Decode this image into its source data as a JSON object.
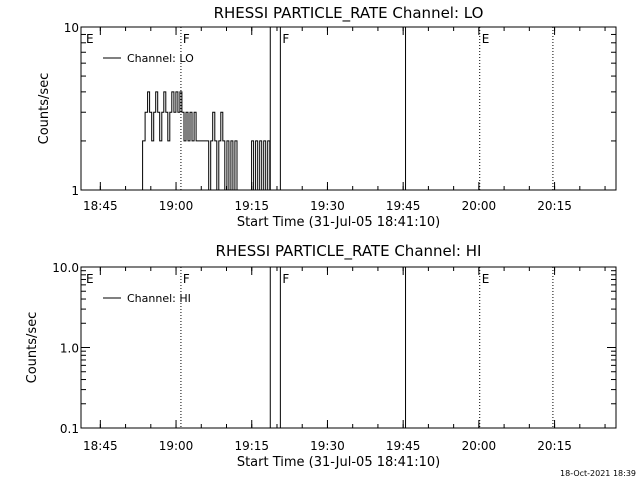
{
  "footer": {
    "timestamp": "18-Oct-2021 18:39"
  },
  "chart_data": [
    {
      "type": "line",
      "title": "RHESSI PARTICLE_RATE Channel: LO",
      "xlabel": "Start Time (31-Jul-05 18:41:10)",
      "ylabel": "Counts/sec",
      "x_units": "minutes after 18:41:10",
      "xlim": [
        0,
        106
      ],
      "ylim": [
        1,
        10
      ],
      "y_scale": "log",
      "x_ticks": [
        {
          "value": 3.83,
          "label": "18:45"
        },
        {
          "value": 18.83,
          "label": "19:00"
        },
        {
          "value": 33.83,
          "label": "19:15"
        },
        {
          "value": 48.83,
          "label": "19:30"
        },
        {
          "value": 63.83,
          "label": "19:45"
        },
        {
          "value": 78.83,
          "label": "20:00"
        },
        {
          "value": 93.83,
          "label": "20:15"
        }
      ],
      "y_ticks": [
        {
          "value": 1,
          "label": "1"
        },
        {
          "value": 10,
          "label": "10"
        }
      ],
      "legend": {
        "position": "top-left",
        "entries": [
          "Channel: LO"
        ]
      },
      "series": [
        {
          "name": "Channel: LO",
          "x": [
            12.2,
            12.2,
            12.7,
            12.7,
            13.2,
            13.2,
            13.6,
            13.6,
            14.0,
            14.0,
            14.4,
            14.4,
            14.8,
            14.8,
            15.2,
            15.2,
            15.6,
            15.6,
            16.0,
            16.0,
            16.4,
            16.4,
            16.8,
            16.8,
            17.2,
            17.2,
            17.6,
            17.6,
            18.0,
            18.0,
            18.4,
            18.4,
            18.8,
            18.8,
            19.2,
            19.2,
            19.6,
            19.6,
            20.0,
            20.0,
            20.4,
            20.4,
            20.8,
            20.8,
            21.2,
            21.2,
            21.6,
            21.6,
            22.0,
            22.0,
            22.4,
            22.4,
            22.8,
            22.8,
            25.3,
            25.3,
            25.7,
            25.7,
            26.1,
            26.1,
            26.5,
            26.5,
            26.9,
            26.9,
            27.3,
            27.3,
            27.7,
            27.7,
            28.1,
            28.1,
            28.5,
            28.5,
            28.9,
            28.9,
            29.3,
            29.3,
            29.7,
            29.7,
            30.1,
            30.1,
            30.5,
            30.5,
            30.9,
            30.9,
            33.8,
            33.8,
            34.2,
            34.2,
            34.6,
            34.6,
            35.0,
            35.0,
            35.4,
            35.4,
            35.8,
            35.8,
            36.2,
            36.2,
            36.6,
            36.6,
            37.0,
            37.0,
            37.4,
            37.4
          ],
          "y": [
            1,
            2,
            2,
            3,
            3,
            4,
            4,
            3,
            3,
            2,
            2,
            3,
            3,
            4,
            4,
            3,
            3,
            2,
            2,
            3,
            3,
            4,
            4,
            3,
            3,
            2,
            2,
            3,
            3,
            4,
            4,
            3,
            3,
            4,
            4,
            3,
            3,
            4,
            4,
            3,
            3,
            2,
            2,
            3,
            3,
            2,
            2,
            3,
            3,
            2,
            2,
            3,
            3,
            2,
            2,
            1,
            1,
            2,
            2,
            3,
            3,
            2,
            2,
            1,
            1,
            2,
            2,
            3,
            3,
            2,
            2,
            1,
            1,
            2,
            2,
            1,
            1,
            2,
            2,
            1,
            1,
            2,
            2,
            1,
            1,
            2,
            2,
            1,
            1,
            2,
            2,
            1,
            1,
            2,
            2,
            1,
            1,
            2,
            2,
            1,
            1,
            2,
            2,
            1
          ]
        }
      ],
      "markers": [
        {
          "x": 0.6,
          "label": "E",
          "style": "none"
        },
        {
          "x": 19.8,
          "label": "F",
          "style": "dotted"
        },
        {
          "x": 37.5,
          "label": "",
          "style": "solid"
        },
        {
          "x": 39.5,
          "label": "F",
          "style": "solid"
        },
        {
          "x": 64.3,
          "label": "",
          "style": "solid"
        },
        {
          "x": 79.0,
          "label": "E",
          "style": "dotted"
        },
        {
          "x": 93.5,
          "label": "",
          "style": "dotted"
        }
      ]
    },
    {
      "type": "line",
      "title": "RHESSI PARTICLE_RATE Channel: HI",
      "xlabel": "Start Time (31-Jul-05 18:41:10)",
      "ylabel": "Counts/sec",
      "x_units": "minutes after 18:41:10",
      "xlim": [
        0,
        106
      ],
      "ylim": [
        0.1,
        10
      ],
      "y_scale": "log",
      "x_ticks": [
        {
          "value": 3.83,
          "label": "18:45"
        },
        {
          "value": 18.83,
          "label": "19:00"
        },
        {
          "value": 33.83,
          "label": "19:15"
        },
        {
          "value": 48.83,
          "label": "19:30"
        },
        {
          "value": 63.83,
          "label": "19:45"
        },
        {
          "value": 78.83,
          "label": "20:00"
        },
        {
          "value": 93.83,
          "label": "20:15"
        }
      ],
      "y_ticks": [
        {
          "value": 0.1,
          "label": "0.1"
        },
        {
          "value": 1,
          "label": "1.0"
        },
        {
          "value": 10,
          "label": "10.0"
        }
      ],
      "legend": {
        "position": "top-left",
        "entries": [
          "Channel: HI"
        ]
      },
      "series": [
        {
          "name": "Channel: HI",
          "x": [],
          "y": []
        }
      ],
      "markers": [
        {
          "x": 0.6,
          "label": "E",
          "style": "none"
        },
        {
          "x": 19.8,
          "label": "F",
          "style": "dotted"
        },
        {
          "x": 37.5,
          "label": "",
          "style": "solid"
        },
        {
          "x": 39.5,
          "label": "F",
          "style": "solid"
        },
        {
          "x": 64.3,
          "label": "",
          "style": "solid"
        },
        {
          "x": 79.0,
          "label": "E",
          "style": "dotted"
        },
        {
          "x": 93.5,
          "label": "",
          "style": "dotted"
        }
      ]
    }
  ]
}
